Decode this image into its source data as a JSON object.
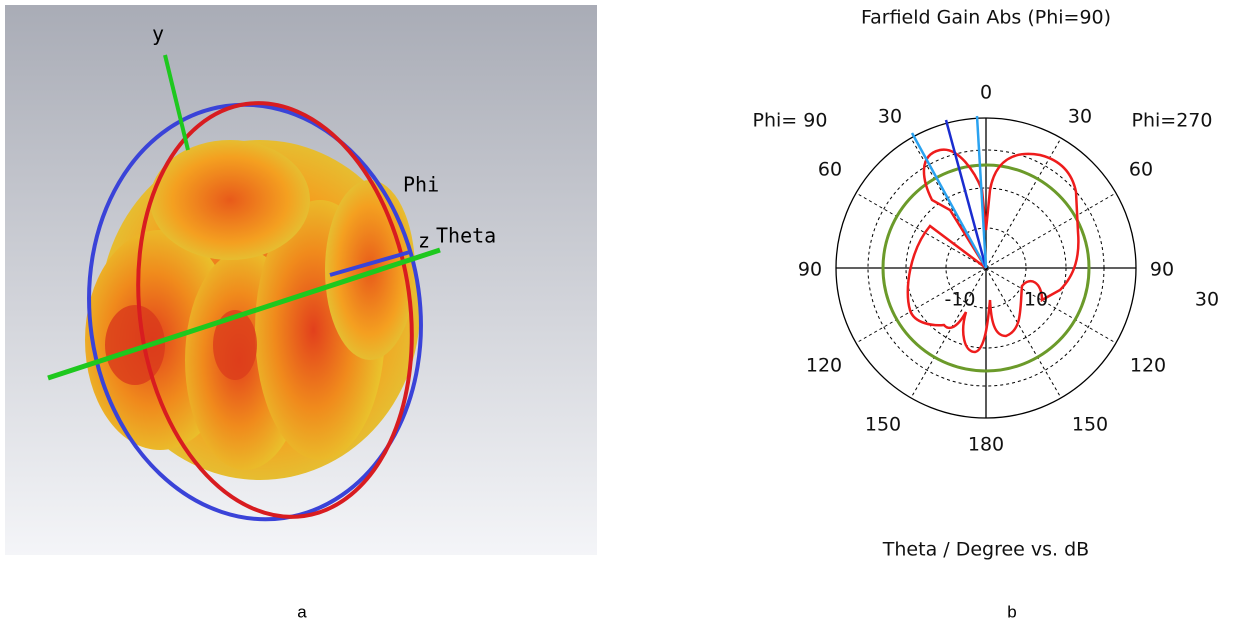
{
  "panel_a": {
    "axis_labels": {
      "y": "y",
      "z": "z",
      "phi": "Phi",
      "theta": "Theta"
    },
    "caption": "a"
  },
  "panel_b": {
    "title": "Farfield Gain Abs (Phi=90)",
    "phi_left": "Phi= 90",
    "phi_right": "Phi=270",
    "angle_labels": [
      "0",
      "30",
      "30",
      "60",
      "60",
      "90",
      "90",
      "120",
      "120",
      "150",
      "150",
      "180"
    ],
    "radial_labels": [
      "-10",
      "10",
      "30"
    ],
    "axis_caption": "Theta / Degree vs. dB",
    "caption": "b"
  }
}
